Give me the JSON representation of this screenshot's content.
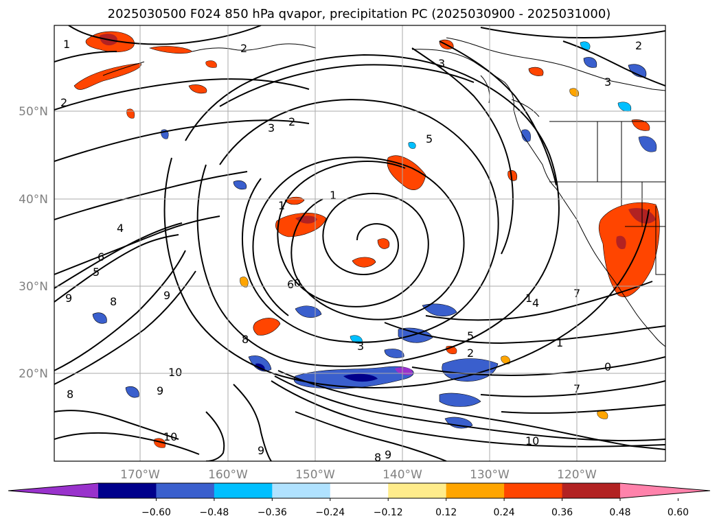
{
  "title": "2025030500 F024 850 hPa qvapor, precipitation PC (2025030900 - 2025031000)",
  "map": {
    "lon_ticks": [
      "170°W",
      "160°W",
      "150°W",
      "140°W",
      "130°W",
      "120°W"
    ],
    "lat_ticks": [
      "50°N",
      "40°N",
      "30°N",
      "20°N"
    ],
    "grid": true,
    "contour_color": "#000000",
    "contour_labels": [
      "1",
      "2",
      "2",
      "3",
      "2",
      "4",
      "6",
      "5",
      "9",
      "8",
      "9",
      "10",
      "9",
      "8",
      "10",
      "9",
      "6",
      "8",
      "1",
      "1",
      "0",
      "3",
      "5",
      "1",
      "4",
      "7",
      "1",
      "2",
      "0",
      "3",
      "5",
      "2",
      "7",
      "10",
      "9",
      "8",
      "3"
    ]
  },
  "colorbar": {
    "orientation": "horizontal",
    "extend": "both",
    "ticks": [
      "−0.60",
      "−0.48",
      "−0.36",
      "−0.24",
      "−0.12",
      "0.12",
      "0.24",
      "0.36",
      "0.48",
      "0.60"
    ],
    "colors": [
      "#9932cc",
      "#00008b",
      "#3a5fcd",
      "#00bfff",
      "#b0e2ff",
      "#ffffff",
      "#ffec8b",
      "#ffa500",
      "#ff4500",
      "#b22222",
      "#ff82ab"
    ]
  }
}
